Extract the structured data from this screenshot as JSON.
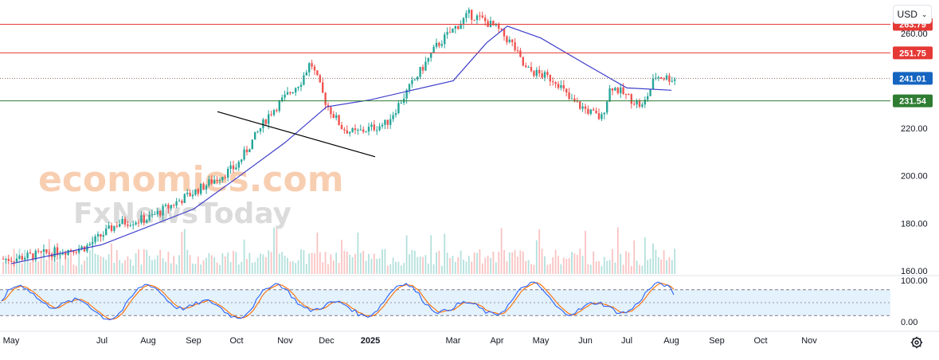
{
  "header": {
    "currency": "USD"
  },
  "watermark": {
    "line1": "economies.com",
    "line2": "FxNewsToday"
  },
  "colors": {
    "up": "#26a69a",
    "down": "#ef5350",
    "ma": "#3d3dcc",
    "resistance": "#e53935",
    "support": "#2e7d32",
    "trend": "#000000",
    "k_line": "#2962ff",
    "d_line": "#ff6d00",
    "osc_band": "#e3f2fd"
  },
  "chart_data": {
    "type": "candlestick",
    "y_ticks": [
      "220.00",
      "200.00",
      "180.00",
      "160.00"
    ],
    "x_ticks": [
      "May",
      "Jul",
      "Aug",
      "Sep",
      "Oct",
      "Nov",
      "Dec",
      "2025",
      "Mar",
      "Apr",
      "May",
      "Jun",
      "Jul",
      "Aug",
      "Sep",
      "Oct",
      "Nov"
    ],
    "ylim": [
      160,
      274
    ],
    "levels": [
      {
        "label": "263.79",
        "value": 263.79,
        "style": "solid",
        "color": "#e53935"
      },
      {
        "label": "251.75",
        "value": 251.75,
        "style": "solid",
        "color": "#e53935"
      },
      {
        "label": "241.01",
        "value": 241.01,
        "style": "dotted",
        "color": "#1565c0"
      },
      {
        "label": "231.54",
        "value": 231.54,
        "style": "solid",
        "color": "#2e7d32"
      }
    ],
    "hidden_tick": "260.00",
    "price_anchors": [
      [
        "May",
        165
      ],
      [
        "Jul",
        170
      ],
      [
        "Jul",
        180
      ],
      [
        "Aug",
        182
      ],
      [
        "Sep",
        193
      ],
      [
        "Oct",
        204
      ],
      [
        "Nov",
        226
      ],
      [
        "Nov",
        240
      ],
      [
        "Dec",
        248
      ],
      [
        "Dec",
        230
      ],
      [
        "Dec",
        220
      ],
      [
        "2025",
        218
      ],
      [
        "2025",
        222
      ],
      [
        "Mar",
        255
      ],
      [
        "Mar",
        268
      ],
      [
        "Apr",
        266
      ],
      [
        "Apr",
        262
      ],
      [
        "Apr",
        255
      ],
      [
        "May",
        245
      ],
      [
        "May",
        240
      ],
      [
        "Jun",
        232
      ],
      [
        "Jun",
        224
      ],
      [
        "Jul",
        238
      ],
      [
        "Jul",
        229
      ],
      [
        "Aug",
        242
      ],
      [
        "Aug",
        240
      ]
    ],
    "moving_average_anchors": [
      [
        "May",
        163
      ],
      [
        "Jul",
        171
      ],
      [
        "Sep",
        186
      ],
      [
        "Oct",
        199
      ],
      [
        "Nov",
        214
      ],
      [
        "Dec",
        229
      ],
      [
        "2025",
        232
      ],
      [
        "Mar",
        240
      ],
      [
        "Apr",
        256
      ],
      [
        "Apr",
        263
      ],
      [
        "May",
        258
      ],
      [
        "Jun",
        247
      ],
      [
        "Jul",
        237
      ],
      [
        "Aug",
        236
      ]
    ],
    "trendline": {
      "from": [
        "2025",
        208
      ],
      "to": [
        "Sep",
        227
      ]
    },
    "oscillator": {
      "type": "stochastic",
      "y_ticks": [
        "100.00",
        "0.00"
      ],
      "ylim": [
        0,
        100
      ],
      "bands": [
        80,
        20
      ]
    }
  }
}
